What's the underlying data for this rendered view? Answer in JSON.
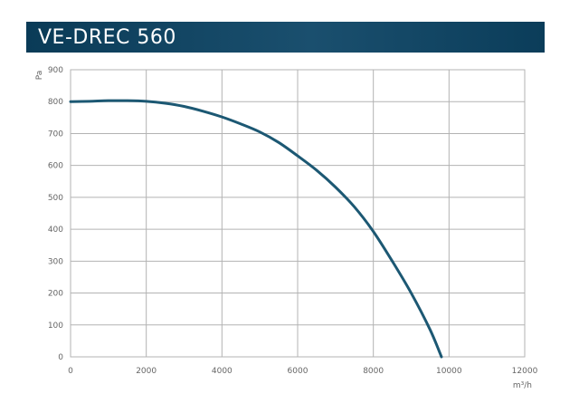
{
  "header": {
    "title": "VE-DREC 560"
  },
  "colors": {
    "title_bar": "#0b3d5a",
    "curve": "#1c5873",
    "grid": "#b3b3b3",
    "text": "#666666"
  },
  "chart_data": {
    "type": "line",
    "title": "VE-DREC 560",
    "xlabel": "m³/h",
    "ylabel": "Pa",
    "xlim": [
      0,
      12000
    ],
    "ylim": [
      0,
      900
    ],
    "xticks": [
      0,
      2000,
      4000,
      6000,
      8000,
      10000,
      12000
    ],
    "yticks": [
      0,
      100,
      200,
      300,
      400,
      500,
      600,
      700,
      800,
      900
    ],
    "grid": true,
    "series": [
      {
        "x": [
          0,
          500,
          1000,
          1500,
          2000,
          2500,
          3000,
          3500,
          4000,
          4500,
          5000,
          5500,
          6000,
          6500,
          7000,
          7500,
          8000,
          8500,
          9000,
          9500,
          9800
        ],
        "y": [
          800,
          801,
          803,
          803,
          801,
          795,
          785,
          770,
          752,
          730,
          705,
          672,
          630,
          585,
          532,
          470,
          393,
          300,
          200,
          85,
          0
        ]
      }
    ]
  }
}
